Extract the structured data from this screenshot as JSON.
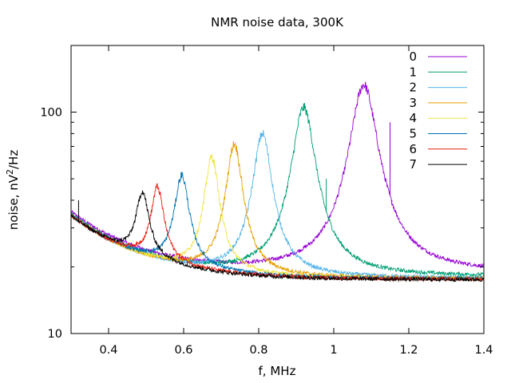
{
  "chart_data": {
    "type": "line",
    "title": "NMR noise data, 300K",
    "xlabel": "f, MHz",
    "ylabel": {
      "prefix": "noise, nV",
      "sup": "2",
      "suffix": "/Hz"
    },
    "xlim": [
      0.3,
      1.4
    ],
    "ylim": [
      10,
      200
    ],
    "ylog": true,
    "grid": false,
    "legend_position": "top-right",
    "xticks": [
      {
        "value": 0.4,
        "label": "0.4"
      },
      {
        "value": 0.6,
        "label": "0.6"
      },
      {
        "value": 0.8,
        "label": "0.8"
      },
      {
        "value": 1.0,
        "label": "1"
      },
      {
        "value": 1.2,
        "label": "1.2"
      },
      {
        "value": 1.4,
        "label": "1.4"
      }
    ],
    "yticks": [
      {
        "value": 10,
        "label": "10"
      },
      {
        "value": 100,
        "label": "100"
      }
    ],
    "baseline": {
      "a": 17.5,
      "b": 0.31,
      "c": 0.011
    },
    "series": [
      {
        "name": "0",
        "color": "#9400d3",
        "peak_freq": 1.08,
        "peak_value": 133,
        "width": 0.035,
        "floor_offset": 1.3
      },
      {
        "name": "1",
        "color": "#009e73",
        "peak_freq": 0.92,
        "peak_value": 105,
        "width": 0.03,
        "floor_offset": 0.6
      },
      {
        "name": "2",
        "color": "#56b4e9",
        "peak_freq": 0.81,
        "peak_value": 80,
        "width": 0.025,
        "floor_offset": 0.3
      },
      {
        "name": "3",
        "color": "#e69f00",
        "peak_freq": 0.735,
        "peak_value": 72,
        "width": 0.022,
        "floor_offset": 0.2
      },
      {
        "name": "4",
        "color": "#f0e442",
        "peak_freq": 0.675,
        "peak_value": 63,
        "width": 0.02,
        "floor_offset": 0.2
      },
      {
        "name": "5",
        "color": "#0072b2",
        "peak_freq": 0.595,
        "peak_value": 52,
        "width": 0.02,
        "floor_offset": 0.2
      },
      {
        "name": "6",
        "color": "#e51e10",
        "peak_freq": 0.53,
        "peak_value": 46,
        "width": 0.018,
        "floor_offset": 0.1
      },
      {
        "name": "7",
        "color": "#000000",
        "peak_freq": 0.49,
        "peak_value": 44,
        "width": 0.018,
        "floor_offset": 0.0
      }
    ],
    "spikes": [
      {
        "series": 1,
        "x": 0.98,
        "value": 50
      },
      {
        "series": 0,
        "x": 1.15,
        "value": 90
      },
      {
        "series": 7,
        "x": 0.32,
        "value": 40
      },
      {
        "series": 0,
        "x": 1.155,
        "value": 40
      }
    ]
  }
}
